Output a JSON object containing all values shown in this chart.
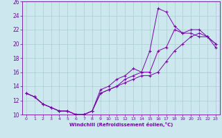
{
  "xlabel": "Windchill (Refroidissement éolien,°C)",
  "background_color": "#cce8ee",
  "grid_color": "#aacccc",
  "line_color": "#7700aa",
  "xlim": [
    -0.5,
    23.5
  ],
  "ylim": [
    10,
    26
  ],
  "xticks": [
    0,
    1,
    2,
    3,
    4,
    5,
    6,
    7,
    8,
    9,
    10,
    11,
    12,
    13,
    14,
    15,
    16,
    17,
    18,
    19,
    20,
    21,
    22,
    23
  ],
  "yticks": [
    10,
    12,
    14,
    16,
    18,
    20,
    22,
    24,
    26
  ],
  "series": [
    {
      "x": [
        0,
        1,
        2,
        3,
        4,
        5,
        6,
        7,
        8,
        9,
        10,
        11,
        12,
        13,
        14,
        15,
        16,
        17,
        18,
        19,
        20,
        21,
        22,
        23
      ],
      "y": [
        13,
        12.5,
        11.5,
        11,
        10.5,
        10.5,
        10,
        10,
        10.5,
        13.5,
        14,
        15,
        15.5,
        16.5,
        16,
        19,
        25,
        24.5,
        22.5,
        21.5,
        21.5,
        21,
        21,
        20
      ]
    },
    {
      "x": [
        0,
        1,
        2,
        3,
        4,
        5,
        6,
        7,
        8,
        9,
        10,
        11,
        12,
        13,
        14,
        15,
        16,
        17,
        18,
        19,
        20,
        21,
        22,
        23
      ],
      "y": [
        13,
        12.5,
        11.5,
        11,
        10.5,
        10.5,
        10,
        10,
        10.5,
        13,
        13.5,
        14,
        15,
        15.5,
        16,
        16,
        19,
        19.5,
        22,
        21.5,
        22,
        22,
        21,
        20
      ]
    },
    {
      "x": [
        0,
        1,
        2,
        3,
        4,
        5,
        6,
        7,
        8,
        9,
        10,
        11,
        12,
        13,
        14,
        15,
        16,
        17,
        18,
        19,
        20,
        21,
        22,
        23
      ],
      "y": [
        13,
        12.5,
        11.5,
        11,
        10.5,
        10.5,
        10,
        10,
        10.5,
        13,
        13.5,
        14,
        14.5,
        15,
        15.5,
        15.5,
        16,
        17.5,
        19,
        20,
        21,
        21.5,
        21,
        19.5
      ]
    }
  ]
}
